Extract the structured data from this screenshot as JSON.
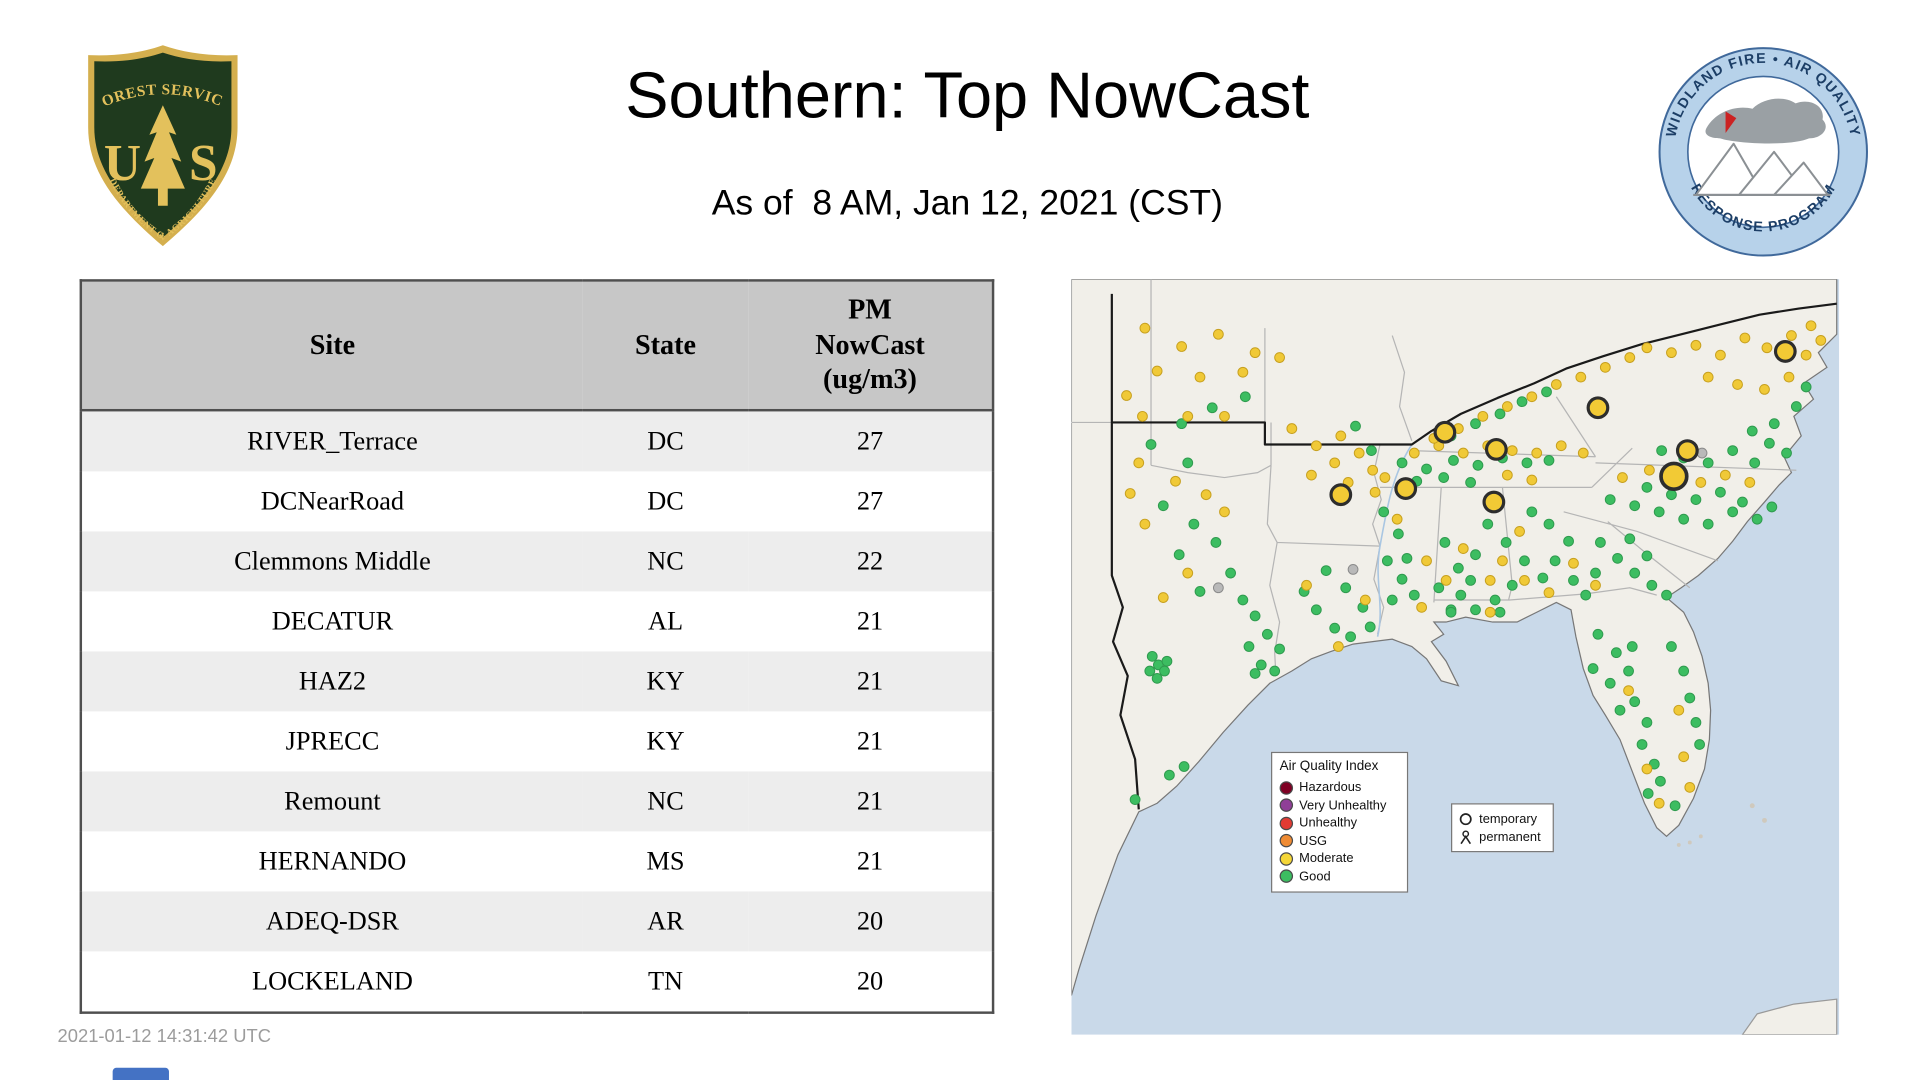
{
  "header": {
    "title": "Southern: Top NowCast",
    "subtitle": "As of  8 AM, Jan 12, 2021 (CST)"
  },
  "logos": {
    "forest_service": {
      "top_text": "FOREST SERVICE",
      "letter_u": "U",
      "letter_s": "S",
      "bottom_text": "DEPARTMENT OF AGRICULTURE"
    },
    "wfaqrp": {
      "top_text": "WILDLAND FIRE • AIR QUALITY",
      "bottom_text": "RESPONSE PROGRAM"
    }
  },
  "table": {
    "columns": [
      "Site",
      "State",
      "PM\nNowCast\n(ug/m3)"
    ],
    "rows": [
      {
        "site": "RIVER_Terrace",
        "state": "DC",
        "value": "27"
      },
      {
        "site": "DCNearRoad",
        "state": "DC",
        "value": "27"
      },
      {
        "site": "Clemmons Middle",
        "state": "NC",
        "value": "22"
      },
      {
        "site": "DECATUR",
        "state": "AL",
        "value": "21"
      },
      {
        "site": "HAZ2",
        "state": "KY",
        "value": "21"
      },
      {
        "site": "JPRECC",
        "state": "KY",
        "value": "21"
      },
      {
        "site": "Remount",
        "state": "NC",
        "value": "21"
      },
      {
        "site": "HERNANDO",
        "state": "MS",
        "value": "21"
      },
      {
        "site": "ADEQ-DSR",
        "state": "AR",
        "value": "20"
      },
      {
        "site": "LOCKELAND",
        "state": "TN",
        "value": "20"
      }
    ]
  },
  "map": {
    "legend": {
      "title": "Air Quality Index",
      "items": [
        {
          "label": "Hazardous",
          "color": "#7e0023"
        },
        {
          "label": "Very Unhealthy",
          "color": "#8f3f97"
        },
        {
          "label": "Unhealthy",
          "color": "#e23b33"
        },
        {
          "label": "USG",
          "color": "#ef8b33"
        },
        {
          "label": "Moderate",
          "color": "#f5d637"
        },
        {
          "label": "Good",
          "color": "#3cbd61"
        }
      ]
    },
    "marker_legend": {
      "temporary": "temporary",
      "permanent": "permanent"
    },
    "colors": {
      "water": "#c9d9e9",
      "land": "#f1efe9",
      "state_line": "#b5b5b5",
      "region_border": "#1a1a1a",
      "river": "#a9c6e2",
      "good": "#3cbd61",
      "good_edge": "#2f9a4e",
      "moderate": "#f0c937",
      "moderate_edge": "#c7a01f",
      "missing": "#b9b9b9",
      "missing_edge": "#8a8a8a",
      "marker_fill": "#f2ca35",
      "marker_ring": "#2d2d2d"
    },
    "points": {
      "good": [
        [
          65,
          135
        ],
        [
          95,
          150
        ],
        [
          75,
          185
        ],
        [
          100,
          200
        ],
        [
          88,
          225
        ],
        [
          118,
          215
        ],
        [
          130,
          240
        ],
        [
          105,
          255
        ],
        [
          140,
          262
        ],
        [
          150,
          275
        ],
        [
          160,
          290
        ],
        [
          145,
          300
        ],
        [
          170,
          302
        ],
        [
          155,
          315
        ],
        [
          166,
          320
        ],
        [
          150,
          322
        ],
        [
          90,
          118
        ],
        [
          115,
          105
        ],
        [
          142,
          96
        ],
        [
          66,
          308
        ],
        [
          71,
          315
        ],
        [
          76,
          320
        ],
        [
          64,
          320
        ],
        [
          70,
          326
        ],
        [
          78,
          312
        ],
        [
          92,
          398
        ],
        [
          80,
          405
        ],
        [
          52,
          425
        ],
        [
          200,
          270
        ],
        [
          215,
          285
        ],
        [
          228,
          292
        ],
        [
          244,
          284
        ],
        [
          238,
          268
        ],
        [
          224,
          252
        ],
        [
          208,
          238
        ],
        [
          190,
          255
        ],
        [
          258,
          230
        ],
        [
          270,
          245
        ],
        [
          262,
          262
        ],
        [
          280,
          258
        ],
        [
          274,
          228
        ],
        [
          267,
          208
        ],
        [
          255,
          190
        ],
        [
          305,
          215
        ],
        [
          316,
          236
        ],
        [
          300,
          252
        ],
        [
          318,
          258
        ],
        [
          310,
          270
        ],
        [
          326,
          246
        ],
        [
          330,
          225
        ],
        [
          270,
          150
        ],
        [
          290,
          155
        ],
        [
          312,
          148
        ],
        [
          332,
          152
        ],
        [
          352,
          146
        ],
        [
          372,
          150
        ],
        [
          390,
          148
        ],
        [
          282,
          165
        ],
        [
          304,
          162
        ],
        [
          326,
          166
        ],
        [
          310,
          128
        ],
        [
          330,
          118
        ],
        [
          350,
          110
        ],
        [
          368,
          100
        ],
        [
          388,
          92
        ],
        [
          340,
          200
        ],
        [
          355,
          215
        ],
        [
          370,
          230
        ],
        [
          385,
          244
        ],
        [
          360,
          250
        ],
        [
          346,
          262
        ],
        [
          395,
          230
        ],
        [
          406,
          214
        ],
        [
          390,
          200
        ],
        [
          376,
          190
        ],
        [
          410,
          246
        ],
        [
          420,
          258
        ],
        [
          428,
          240
        ],
        [
          310,
          272
        ],
        [
          330,
          270
        ],
        [
          350,
          272
        ],
        [
          430,
          290
        ],
        [
          445,
          305
        ],
        [
          455,
          320
        ],
        [
          440,
          330
        ],
        [
          426,
          318
        ],
        [
          460,
          345
        ],
        [
          470,
          362
        ],
        [
          466,
          380
        ],
        [
          476,
          396
        ],
        [
          481,
          410
        ],
        [
          471,
          420
        ],
        [
          490,
          300
        ],
        [
          500,
          320
        ],
        [
          505,
          342
        ],
        [
          510,
          362
        ],
        [
          513,
          380
        ],
        [
          458,
          300
        ],
        [
          448,
          352
        ],
        [
          493,
          430
        ],
        [
          432,
          215
        ],
        [
          446,
          228
        ],
        [
          460,
          240
        ],
        [
          474,
          250
        ],
        [
          456,
          212
        ],
        [
          470,
          226
        ],
        [
          486,
          258
        ],
        [
          440,
          180
        ],
        [
          460,
          185
        ],
        [
          480,
          190
        ],
        [
          500,
          196
        ],
        [
          520,
          200
        ],
        [
          540,
          190
        ],
        [
          470,
          170
        ],
        [
          490,
          176
        ],
        [
          510,
          180
        ],
        [
          530,
          174
        ],
        [
          548,
          182
        ],
        [
          560,
          196
        ],
        [
          572,
          186
        ],
        [
          482,
          140
        ],
        [
          500,
          146
        ],
        [
          520,
          150
        ],
        [
          540,
          140
        ],
        [
          558,
          150
        ],
        [
          570,
          134
        ],
        [
          584,
          142
        ],
        [
          556,
          124
        ],
        [
          574,
          118
        ],
        [
          592,
          104
        ],
        [
          600,
          88
        ],
        [
          245,
          140
        ],
        [
          232,
          120
        ]
      ],
      "moderate": [
        [
          60,
          40
        ],
        [
          90,
          55
        ],
        [
          120,
          45
        ],
        [
          150,
          60
        ],
        [
          70,
          75
        ],
        [
          105,
          80
        ],
        [
          140,
          76
        ],
        [
          170,
          64
        ],
        [
          45,
          95
        ],
        [
          95,
          112
        ],
        [
          125,
          112
        ],
        [
          58,
          112
        ],
        [
          55,
          150
        ],
        [
          85,
          165
        ],
        [
          110,
          176
        ],
        [
          60,
          200
        ],
        [
          95,
          240
        ],
        [
          75,
          260
        ],
        [
          125,
          190
        ],
        [
          48,
          175
        ],
        [
          180,
          122
        ],
        [
          200,
          136
        ],
        [
          220,
          128
        ],
        [
          215,
          150
        ],
        [
          196,
          160
        ],
        [
          235,
          142
        ],
        [
          226,
          166
        ],
        [
          246,
          156
        ],
        [
          256,
          162
        ],
        [
          248,
          174
        ],
        [
          280,
          142
        ],
        [
          300,
          136
        ],
        [
          320,
          142
        ],
        [
          340,
          136
        ],
        [
          360,
          140
        ],
        [
          380,
          142
        ],
        [
          400,
          136
        ],
        [
          418,
          142
        ],
        [
          356,
          160
        ],
        [
          376,
          164
        ],
        [
          296,
          130
        ],
        [
          316,
          122
        ],
        [
          336,
          112
        ],
        [
          356,
          104
        ],
        [
          376,
          96
        ],
        [
          396,
          86
        ],
        [
          416,
          80
        ],
        [
          436,
          72
        ],
        [
          456,
          64
        ],
        [
          470,
          56
        ],
        [
          490,
          60
        ],
        [
          510,
          54
        ],
        [
          530,
          62
        ],
        [
          550,
          48
        ],
        [
          568,
          56
        ],
        [
          588,
          46
        ],
        [
          604,
          38
        ],
        [
          520,
          80
        ],
        [
          544,
          86
        ],
        [
          566,
          90
        ],
        [
          586,
          80
        ],
        [
          600,
          62
        ],
        [
          612,
          50
        ],
        [
          450,
          162
        ],
        [
          472,
          156
        ],
        [
          492,
          162
        ],
        [
          514,
          166
        ],
        [
          534,
          160
        ],
        [
          554,
          166
        ],
        [
          352,
          230
        ],
        [
          370,
          246
        ],
        [
          390,
          256
        ],
        [
          410,
          232
        ],
        [
          428,
          250
        ],
        [
          366,
          206
        ],
        [
          342,
          246
        ],
        [
          455,
          336
        ],
        [
          470,
          400
        ],
        [
          480,
          428
        ],
        [
          500,
          390
        ],
        [
          496,
          352
        ],
        [
          342,
          272
        ],
        [
          505,
          415
        ],
        [
          290,
          230
        ],
        [
          306,
          246
        ],
        [
          266,
          196
        ],
        [
          320,
          220
        ],
        [
          286,
          268
        ],
        [
          192,
          250
        ],
        [
          240,
          262
        ],
        [
          218,
          300
        ]
      ],
      "missing": [
        [
          515,
          142
        ],
        [
          230,
          237
        ],
        [
          120,
          252
        ]
      ]
    },
    "top_markers": {
      "standard": [
        [
          220,
          176
        ],
        [
          273,
          171
        ],
        [
          305,
          125
        ],
        [
          347,
          139
        ],
        [
          345,
          182
        ],
        [
          430,
          105
        ],
        [
          503,
          140
        ],
        [
          583,
          59
        ]
      ],
      "large": [
        [
          492,
          161
        ]
      ]
    }
  },
  "footer": {
    "timestamp": "2021-01-12 14:31:42 UTC"
  }
}
